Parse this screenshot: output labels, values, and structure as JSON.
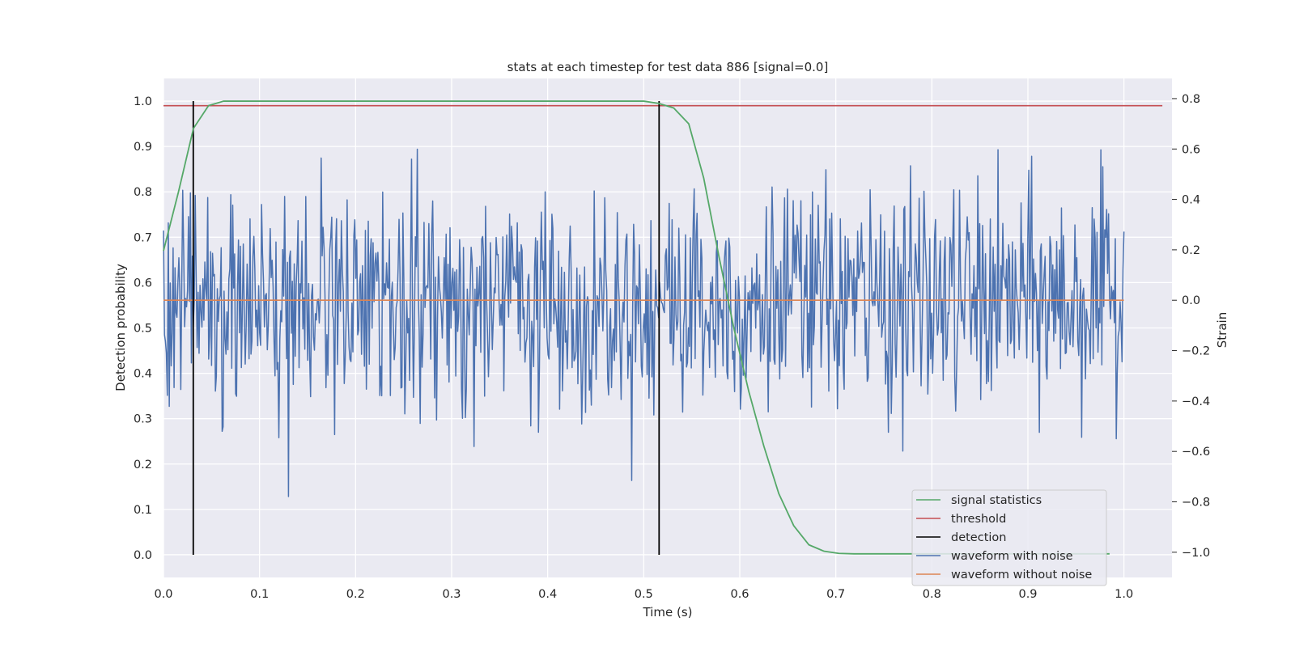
{
  "chart_data": {
    "type": "line",
    "title": "stats at each timestep for test data 886 [signal=0.0]",
    "xlabel": "Time (s)",
    "ylabel": "Detection probability",
    "y2label": "Strain",
    "xlim": [
      0.0,
      1.05
    ],
    "ylim": [
      -0.05,
      1.05
    ],
    "y2lim": [
      -1.1,
      0.88
    ],
    "x_ticks": [
      "0.0",
      "0.1",
      "0.2",
      "0.3",
      "0.4",
      "0.5",
      "0.6",
      "0.7",
      "0.8",
      "0.9",
      "1.0"
    ],
    "y_ticks": [
      "0.0",
      "0.1",
      "0.2",
      "0.3",
      "0.4",
      "0.5",
      "0.6",
      "0.7",
      "0.8",
      "0.9",
      "1.0"
    ],
    "y2_ticks": [
      "−1.0",
      "−0.8",
      "−0.6",
      "−0.4",
      "−0.2",
      "0.0",
      "0.2",
      "0.4",
      "0.6",
      "0.8"
    ],
    "grid": true,
    "legend_position": "lower-right",
    "series": [
      {
        "name": "signal statistics",
        "color": "#55a868",
        "axis": "left",
        "x": [
          0.0,
          0.0156,
          0.0312,
          0.0469,
          0.0625,
          0.0781,
          0.1,
          0.2,
          0.3,
          0.4,
          0.5,
          0.5156,
          0.5312,
          0.5469,
          0.5625,
          0.5781,
          0.5938,
          0.6094,
          0.625,
          0.6406,
          0.6562,
          0.6719,
          0.6875,
          0.7031,
          0.7188,
          0.75,
          0.8,
          0.9,
          0.95,
          0.985
        ],
        "values": [
          0.67,
          0.8,
          0.94,
          0.99,
          1.0,
          1.0,
          1.0,
          1.0,
          1.0,
          1.0,
          1.0,
          0.995,
          0.985,
          0.95,
          0.83,
          0.66,
          0.5,
          0.36,
          0.24,
          0.135,
          0.064,
          0.022,
          0.008,
          0.003,
          0.002,
          0.002,
          0.002,
          0.002,
          0.002,
          0.002
        ]
      },
      {
        "name": "threshold",
        "color": "#c44e52",
        "axis": "left",
        "x": [
          0.0,
          1.04
        ],
        "values": [
          0.99,
          0.99
        ]
      },
      {
        "name": "detection",
        "color": "#000000",
        "axis": "left",
        "segments": [
          {
            "x": 0.031,
            "y0": 0.0,
            "y1": 1.0
          },
          {
            "x": 0.516,
            "y0": 0.0,
            "y1": 1.0
          }
        ]
      },
      {
        "name": "waveform with noise",
        "color": "#4c72b0",
        "axis": "right",
        "x_start": 0.0,
        "x_end": 1.0,
        "n_points": 1000,
        "seed": 886,
        "std": 0.22,
        "min": -0.88,
        "max": 0.8
      },
      {
        "name": "waveform without noise",
        "color": "#dd8452",
        "axis": "right",
        "x": [
          0.0,
          1.0
        ],
        "values": [
          0.0,
          0.0
        ]
      }
    ]
  }
}
